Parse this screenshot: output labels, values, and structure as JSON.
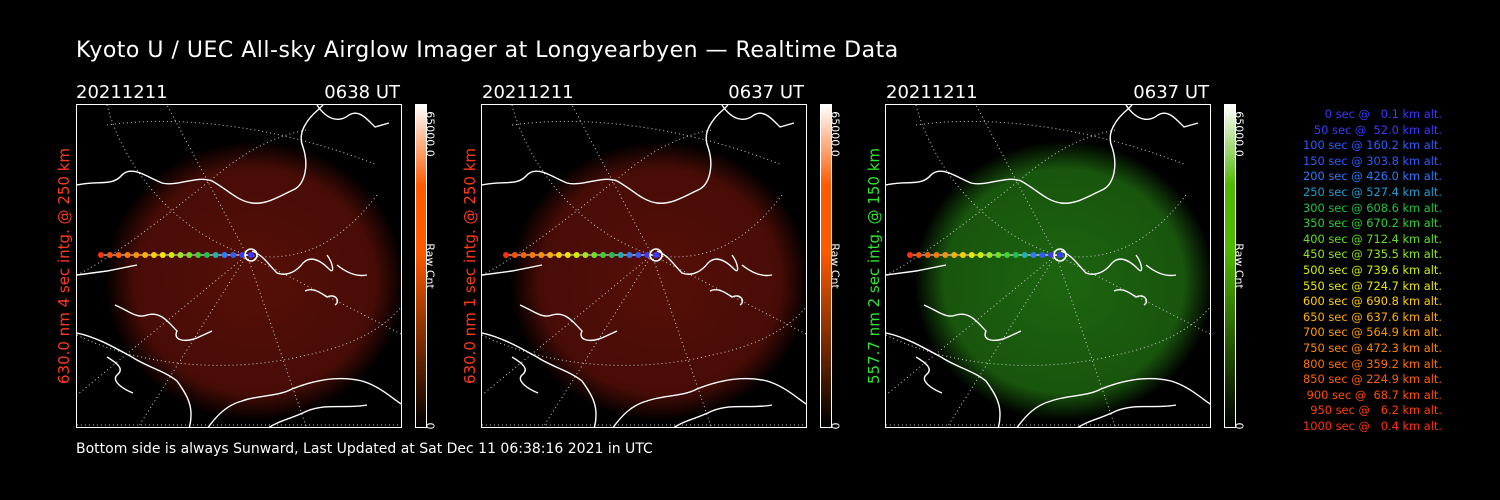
{
  "title": "Kyoto U / UEC All-sky Airglow Imager at Longyearbyen — Realtime Data",
  "footer": "Bottom side is always Sunward, Last Updated at Sat Dec 11 06:38:16 2021 in UTC",
  "panels": [
    {
      "date": "20211211",
      "time": "0638 UT",
      "side_label": "630.0 nm 4 sec intg. @ 250 km",
      "label_color": "#ff3a1a",
      "cbar_max": "65000.0",
      "cbar_min": "0",
      "cbar_unit": "Raw Cnt",
      "cbar_color": "#ff5a00",
      "glow_color": "#5a0f08"
    },
    {
      "date": "20211211",
      "time": "0637 UT",
      "side_label": "630.0 nm 1 sec intg. @ 250 km",
      "label_color": "#ff3a1a",
      "cbar_max": "65000.0",
      "cbar_min": "0",
      "cbar_unit": "Raw Cnt",
      "cbar_color": "#ff5a00",
      "glow_color": "#5a0f08"
    },
    {
      "date": "20211211",
      "time": "0637 UT",
      "side_label": "557.7 nm 2 sec intg. @ 150 km",
      "label_color": "#2ee62e",
      "cbar_max": "65000.0",
      "cbar_min": "0",
      "cbar_unit": "Raw Cnt",
      "cbar_color": "#4fb800",
      "glow_color": "#1e6a10"
    }
  ],
  "legend": [
    {
      "text": "0 sec @   0.1 km alt.",
      "color": "#3a3aff"
    },
    {
      "text": "50 sec @  52.0 km alt.",
      "color": "#3a3aff"
    },
    {
      "text": "100 sec @ 160.2 km alt.",
      "color": "#2f5cff"
    },
    {
      "text": "150 sec @ 303.8 km alt.",
      "color": "#2f5cff"
    },
    {
      "text": "200 sec @ 426.0 km alt.",
      "color": "#2c7aff"
    },
    {
      "text": "250 sec @ 527.4 km alt.",
      "color": "#1f9fd0"
    },
    {
      "text": "300 sec @ 608.6 km alt.",
      "color": "#20c040"
    },
    {
      "text": "350 sec @ 670.2 km alt.",
      "color": "#30d030"
    },
    {
      "text": "400 sec @ 712.4 km alt.",
      "color": "#60e020"
    },
    {
      "text": "450 sec @ 735.5 km alt.",
      "color": "#90e820"
    },
    {
      "text": "500 sec @ 739.6 km alt.",
      "color": "#c8f000"
    },
    {
      "text": "550 sec @ 724.7 km alt.",
      "color": "#e8e800"
    },
    {
      "text": "600 sec @ 690.8 km alt.",
      "color": "#ffd000"
    },
    {
      "text": "650 sec @ 637.6 km alt.",
      "color": "#ffb000"
    },
    {
      "text": "700 sec @ 564.9 km alt.",
      "color": "#ff9a00"
    },
    {
      "text": "750 sec @ 472.3 km alt.",
      "color": "#ff8800"
    },
    {
      "text": "800 sec @ 359.2 km alt.",
      "color": "#ff7000"
    },
    {
      "text": "850 sec @ 224.9 km alt.",
      "color": "#ff6000"
    },
    {
      "text": "900 sec @  68.7 km alt.",
      "color": "#ff5000"
    },
    {
      "text": "950 sec @   6.2 km alt.",
      "color": "#ff4000"
    },
    {
      "text": "1000 sec @   0.4 km alt.",
      "color": "#ff3010"
    }
  ],
  "track_colors": [
    "#ff3010",
    "#ff5000",
    "#ff6000",
    "#ff7800",
    "#ff9000",
    "#ffb000",
    "#ffd000",
    "#f0e800",
    "#d0f000",
    "#a0e820",
    "#70e020",
    "#40d030",
    "#20c050",
    "#20b0b0",
    "#2c7aff",
    "#2f5cff",
    "#3a3aff",
    "#3a3aff"
  ]
}
